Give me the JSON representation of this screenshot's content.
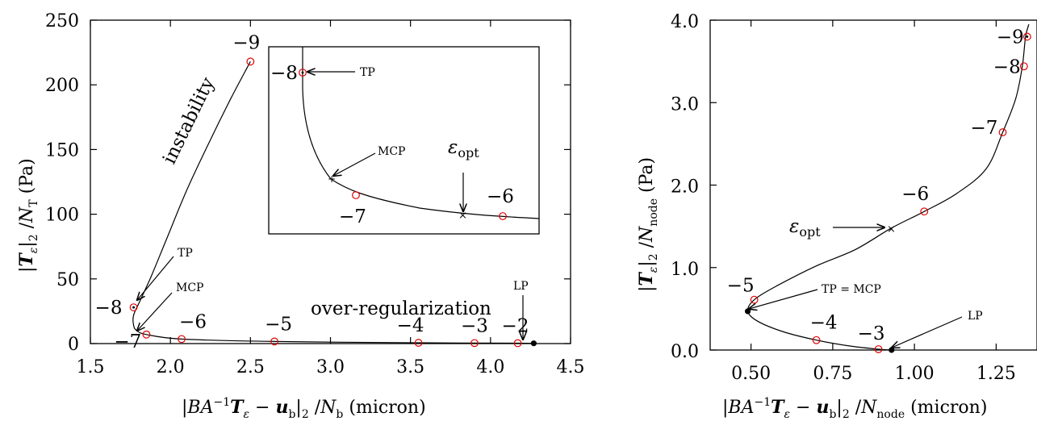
{
  "chart_data": [
    {
      "type": "line",
      "xlabel": "|BA⁻¹Tε − u_b|₂ /N_b (micron)",
      "ylabel": "|Tε|₂ /N_T (Pa)",
      "xlim": [
        1.5,
        4.5
      ],
      "ylim": [
        0,
        250
      ],
      "xticks": [
        "1.5",
        "2.0",
        "2.5",
        "3.0",
        "3.5",
        "4.0",
        "4.5"
      ],
      "yticks": [
        "0",
        "50",
        "100",
        "150",
        "200",
        "250"
      ],
      "curve": [
        [
          2.5,
          218
        ],
        [
          2.38,
          190
        ],
        [
          2.24,
          155
        ],
        [
          2.1,
          118
        ],
        [
          1.98,
          82
        ],
        [
          1.88,
          52
        ],
        [
          1.81,
          33
        ],
        [
          1.77,
          22
        ],
        [
          1.77,
          14
        ],
        [
          1.79,
          10
        ],
        [
          1.85,
          7
        ],
        [
          2.07,
          3.5
        ],
        [
          2.65,
          1.6
        ],
        [
          3.55,
          0.6
        ],
        [
          3.9,
          0.4
        ],
        [
          4.17,
          0.3
        ],
        [
          4.27,
          0.2
        ]
      ],
      "points": [
        {
          "label": "−9",
          "x": 2.5,
          "y": 218
        },
        {
          "label": "−8",
          "x": 1.77,
          "y": 28
        },
        {
          "label": "−7",
          "x": 1.85,
          "y": 7
        },
        {
          "label": "−6",
          "x": 2.07,
          "y": 3.5
        },
        {
          "label": "−5",
          "x": 2.65,
          "y": 1.6
        },
        {
          "label": "−4",
          "x": 3.55,
          "y": 0.6
        },
        {
          "label": "−3",
          "x": 3.9,
          "y": 0.4
        },
        {
          "label": "−2",
          "x": 4.17,
          "y": 0.3
        }
      ],
      "special_points": [
        {
          "name": "LP",
          "x": 4.27,
          "y": 0.2
        },
        {
          "name": "TP",
          "x": 1.77,
          "y": 28
        },
        {
          "name": "MCP",
          "x": 1.79,
          "y": 10
        }
      ],
      "annotations": [
        "instability",
        "over-regularization",
        "TP",
        "MCP",
        "LP"
      ],
      "inset": {
        "points": [
          "−8",
          "−7",
          "−6"
        ],
        "annotations": [
          "TP",
          "MCP",
          "εopt"
        ]
      },
      "grid": false,
      "legend": "none"
    },
    {
      "type": "line",
      "xlabel": "|BA⁻¹Tε − u_b|₂ /N_node (micron)",
      "ylabel": "|Tε|₂ /N_node (Pa)",
      "xlim": [
        0.375,
        1.375
      ],
      "ylim": [
        0,
        4
      ],
      "xticks": [
        "0.50",
        "0.75",
        "1.00",
        "1.25"
      ],
      "yticks": [
        "0.0",
        "1.0",
        "2.0",
        "3.0",
        "4.0"
      ],
      "curve": [
        [
          0.93,
          0
        ],
        [
          0.89,
          0.01
        ],
        [
          0.8,
          0.05
        ],
        [
          0.7,
          0.12
        ],
        [
          0.6,
          0.22
        ],
        [
          0.52,
          0.35
        ],
        [
          0.49,
          0.47
        ],
        [
          0.51,
          0.61
        ],
        [
          0.58,
          0.78
        ],
        [
          0.7,
          1.02
        ],
        [
          0.82,
          1.22
        ],
        [
          0.93,
          1.48
        ],
        [
          1.03,
          1.68
        ],
        [
          1.13,
          1.9
        ],
        [
          1.22,
          2.2
        ],
        [
          1.27,
          2.64
        ],
        [
          1.31,
          3.05
        ],
        [
          1.33,
          3.44
        ],
        [
          1.34,
          3.8
        ],
        [
          1.35,
          3.95
        ]
      ],
      "points": [
        {
          "label": "−9",
          "x": 1.345,
          "y": 3.8
        },
        {
          "label": "−8",
          "x": 1.335,
          "y": 3.44
        },
        {
          "label": "−7",
          "x": 1.27,
          "y": 2.64
        },
        {
          "label": "−6",
          "x": 1.03,
          "y": 1.68
        },
        {
          "label": "−5",
          "x": 0.51,
          "y": 0.61
        },
        {
          "label": "−4",
          "x": 0.7,
          "y": 0.12
        },
        {
          "label": "−3",
          "x": 0.89,
          "y": 0.01
        }
      ],
      "special_points": [
        {
          "name": "εopt",
          "x": 0.93,
          "y": 1.48
        },
        {
          "name": "TP = MCP",
          "x": 0.49,
          "y": 0.47
        },
        {
          "name": "LP",
          "x": 0.93,
          "y": 0
        }
      ],
      "annotations": [
        "εopt",
        "TP = MCP",
        "LP"
      ],
      "grid": false,
      "legend": "none"
    }
  ]
}
